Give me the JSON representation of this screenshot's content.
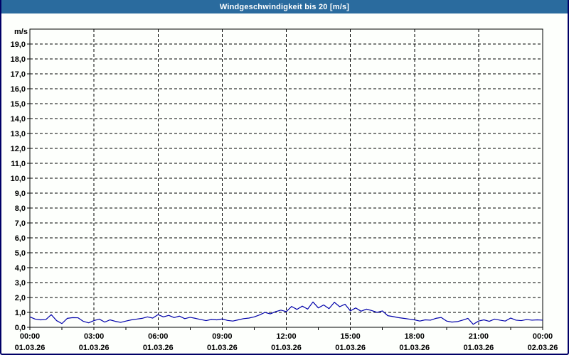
{
  "window": {
    "title": "Windgeschwindigkeit bis 20 [m/s]"
  },
  "colors": {
    "titlebar_bg": "#2A6B9E",
    "titlebar_text": "#FFFFFF",
    "window_border": "#000066",
    "panel_bg": "#FDFFFC",
    "grid": "#000000",
    "axis": "#000000",
    "label_text": "#000000",
    "series_line": "#0000AA"
  },
  "chart_data": {
    "type": "line",
    "title": "Windgeschwindigkeit bis 20 [m/s]",
    "y_unit_label": "m/s",
    "ylim": [
      0,
      20
    ],
    "xlim_hours": [
      0,
      24
    ],
    "grid": "dashed",
    "legend": "none",
    "y_tick_step": 1.0,
    "y_tick_labels": [
      "0,0",
      "1,0",
      "2,0",
      "3,0",
      "4,0",
      "5,0",
      "6,0",
      "7,0",
      "8,0",
      "9,0",
      "10,0",
      "11,0",
      "12,0",
      "13,0",
      "14,0",
      "15,0",
      "16,0",
      "17,0",
      "18,0",
      "19,0"
    ],
    "x_minor_tick_interval_hours": 1.5,
    "x_ticks": [
      {
        "hour": 0,
        "time": "00:00",
        "date": "01.03.26"
      },
      {
        "hour": 3,
        "time": "03:00",
        "date": "01.03.26"
      },
      {
        "hour": 6,
        "time": "06:00",
        "date": "01.03.26"
      },
      {
        "hour": 9,
        "time": "09:00",
        "date": "01.03.26"
      },
      {
        "hour": 12,
        "time": "12:00",
        "date": "01.03.26"
      },
      {
        "hour": 15,
        "time": "15:00",
        "date": "01.03.26"
      },
      {
        "hour": 18,
        "time": "18:00",
        "date": "01.03.26"
      },
      {
        "hour": 21,
        "time": "21:00",
        "date": "01.03.26"
      },
      {
        "hour": 24,
        "time": "00:00",
        "date": "02.03.26"
      }
    ],
    "series": [
      {
        "name": "Windgeschwindigkeit",
        "color": "#0000AA",
        "x_start_hour": 0,
        "x_step_hours": 0.25,
        "values": [
          0.7,
          0.55,
          0.5,
          0.52,
          0.85,
          0.45,
          0.25,
          0.6,
          0.65,
          0.64,
          0.4,
          0.3,
          0.45,
          0.55,
          0.35,
          0.5,
          0.4,
          0.33,
          0.42,
          0.5,
          0.55,
          0.6,
          0.7,
          0.62,
          0.85,
          0.7,
          0.8,
          0.65,
          0.75,
          0.58,
          0.67,
          0.6,
          0.52,
          0.45,
          0.53,
          0.5,
          0.56,
          0.46,
          0.42,
          0.5,
          0.58,
          0.62,
          0.7,
          0.83,
          1.0,
          0.9,
          1.05,
          1.15,
          1.05,
          1.4,
          1.2,
          1.42,
          1.22,
          1.7,
          1.3,
          1.5,
          1.25,
          1.68,
          1.38,
          1.55,
          1.1,
          1.3,
          1.08,
          1.22,
          1.12,
          1.0,
          1.1,
          0.78,
          0.72,
          0.65,
          0.6,
          0.55,
          0.5,
          0.42,
          0.5,
          0.48,
          0.6,
          0.66,
          0.42,
          0.35,
          0.38,
          0.48,
          0.6,
          0.2,
          0.42,
          0.5,
          0.4,
          0.55,
          0.48,
          0.42,
          0.62,
          0.48,
          0.45,
          0.52,
          0.48,
          0.5,
          0.48
        ]
      }
    ]
  }
}
